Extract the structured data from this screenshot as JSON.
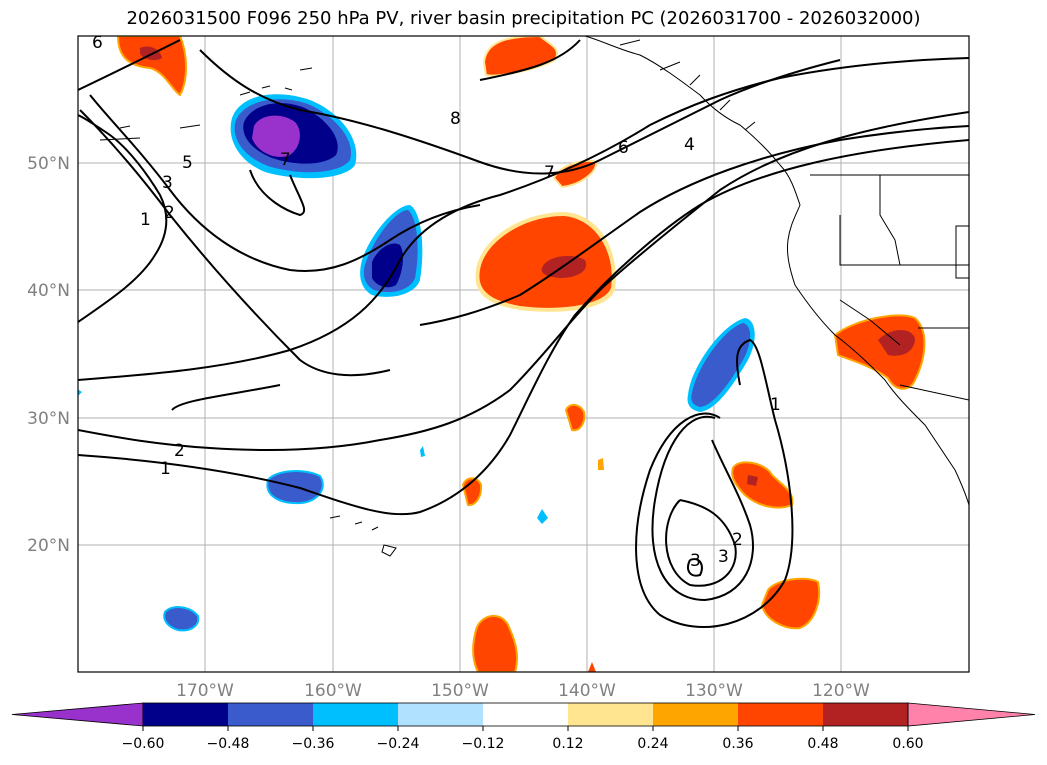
{
  "title": "2026031500 F096 250 hPa PV, river basin precipitation PC (2026031700 - 2026032000)",
  "lat_labels": [
    "50°N",
    "40°N",
    "30°N",
    "20°N"
  ],
  "lon_labels": [
    "170°W",
    "160°W",
    "150°W",
    "140°W",
    "130°W",
    "120°W"
  ],
  "colorbar": {
    "ticks": [
      "−0.60",
      "−0.48",
      "−0.36",
      "−0.24",
      "−0.12",
      "0.12",
      "0.24",
      "0.36",
      "0.48",
      "0.60"
    ],
    "colors": [
      "#9932cc",
      "#00008b",
      "#3a5bcc",
      "#00bfff",
      "#b0e2ff",
      "#ffffff",
      "#ffe58f",
      "#ffa500",
      "#ff4500",
      "#b22222",
      "#ff82ab"
    ]
  },
  "contour_labels": [
    "6",
    "8",
    "7",
    "6",
    "4",
    "5",
    "3",
    "2",
    "1",
    "7",
    "2",
    "1",
    "1",
    "2",
    "3",
    "3"
  ],
  "chart_data": {
    "type": "heatmap",
    "contour_field": "250 hPa PV",
    "shaded_field": "river basin precipitation PC",
    "lon_range_deg": [
      -180,
      -110
    ],
    "lat_range_deg": [
      10,
      60
    ],
    "contour_levels": [
      1,
      2,
      3,
      4,
      5,
      6,
      7,
      8
    ],
    "shading_bounds": [
      -0.6,
      -0.48,
      -0.36,
      -0.24,
      -0.12,
      0.12,
      0.24,
      0.36,
      0.48,
      0.6
    ]
  }
}
